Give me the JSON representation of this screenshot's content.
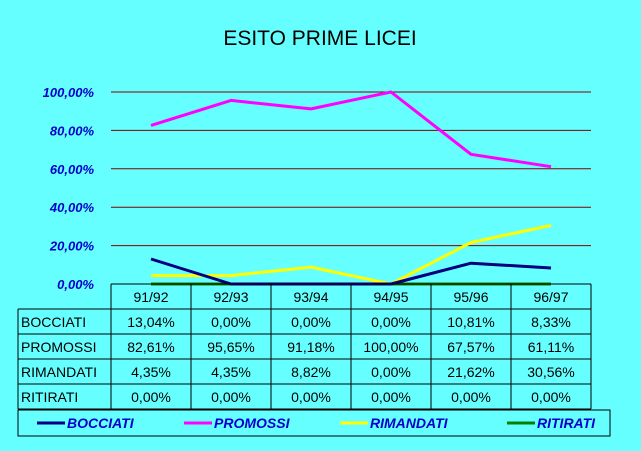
{
  "chart_data": {
    "type": "line",
    "title": "ESITO PRIME LICEI",
    "categories": [
      "91/92",
      "92/93",
      "93/94",
      "94/95",
      "95/96",
      "96/97"
    ],
    "y_ticks": [
      "0,00%",
      "20,00%",
      "40,00%",
      "60,00%",
      "80,00%",
      "100,00%"
    ],
    "ylim": [
      0,
      100
    ],
    "grid": true,
    "legend_position": "bottom",
    "series": [
      {
        "name": "BOCCIATI",
        "color": "#000080",
        "values": [
          13.04,
          0.0,
          0.0,
          0.0,
          10.81,
          8.33
        ],
        "labels": [
          "13,04%",
          "0,00%",
          "0,00%",
          "0,00%",
          "10,81%",
          "8,33%"
        ]
      },
      {
        "name": "PROMOSSI",
        "color": "#ff00ff",
        "values": [
          82.61,
          95.65,
          91.18,
          100.0,
          67.57,
          61.11
        ],
        "labels": [
          "82,61%",
          "95,65%",
          "91,18%",
          "100,00%",
          "67,57%",
          "61,11%"
        ]
      },
      {
        "name": "RIMANDATI",
        "color": "#ffff00",
        "values": [
          4.35,
          4.35,
          8.82,
          0.0,
          21.62,
          30.56
        ],
        "labels": [
          "4,35%",
          "4,35%",
          "8,82%",
          "0,00%",
          "21,62%",
          "30,56%"
        ]
      },
      {
        "name": "RITIRATI",
        "color": "#008000",
        "values": [
          0.0,
          0.0,
          0.0,
          0.0,
          0.0,
          0.0
        ],
        "labels": [
          "0,00%",
          "0,00%",
          "0,00%",
          "0,00%",
          "0,00%",
          "0,00%"
        ]
      }
    ],
    "colors": {
      "background": "#66ffff",
      "gridline": "#800000",
      "axis_text": "#0000cc"
    }
  }
}
